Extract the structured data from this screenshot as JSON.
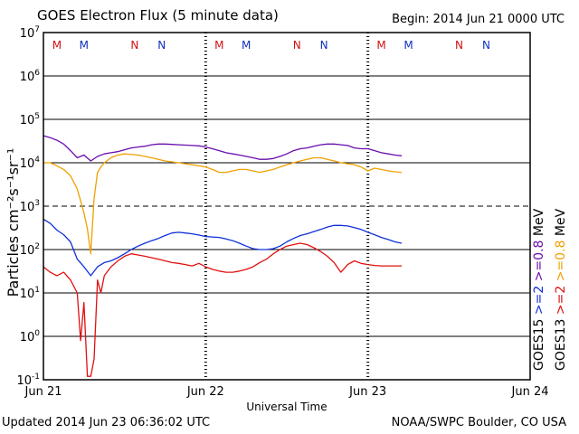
{
  "header": {
    "title": "GOES Electron Flux (5 minute data)",
    "begin": "Begin: 2014 Jun 21 0000 UTC"
  },
  "footer": {
    "updated": "Updated 2014 Jun 23 06:36:02 UTC",
    "credit": "NOAA/SWPC Boulder, CO USA"
  },
  "colors": {
    "goes15_08": "#6a0dad",
    "goes13_08": "#f0a000",
    "goes15_2": "#1030d8",
    "goes13_2": "#e01010",
    "marker_M": "#d01010",
    "marker_N": "#1030c0"
  },
  "chart_data": {
    "type": "line",
    "title": "GOES Electron Flux (5 minute data)",
    "xlabel": "Universal Time",
    "ylabel": "Particles cm⁻²s⁻¹sr⁻¹",
    "yscale": "log",
    "ylim": [
      0.1,
      10000000
    ],
    "xlim": [
      0,
      72
    ],
    "x_unit": "hours since 2014 Jun 21 0000 UTC",
    "x_ticks": [
      {
        "x": 0,
        "label": "Jun 21"
      },
      {
        "x": 24,
        "label": "Jun 22"
      },
      {
        "x": 48,
        "label": "Jun 23"
      },
      {
        "x": 72,
        "label": "Jun 24"
      }
    ],
    "y_ticks": [
      {
        "exp": 7
      },
      {
        "exp": 6
      },
      {
        "exp": 5
      },
      {
        "exp": 4
      },
      {
        "exp": 3
      },
      {
        "exp": 2
      },
      {
        "exp": 1
      },
      {
        "exp": 0
      },
      {
        "exp": -1
      }
    ],
    "threshold_dashed": 1000,
    "day_boundaries_dotted": [
      24,
      48
    ],
    "magnetopause_markers": [
      {
        "x": 2,
        "label": "M",
        "color": "marker_M"
      },
      {
        "x": 6,
        "label": "M",
        "color": "marker_N"
      },
      {
        "x": 13.5,
        "label": "N",
        "color": "marker_M"
      },
      {
        "x": 17.5,
        "label": "N",
        "color": "marker_N"
      },
      {
        "x": 26,
        "label": "M",
        "color": "marker_M"
      },
      {
        "x": 30,
        "label": "M",
        "color": "marker_N"
      },
      {
        "x": 37.5,
        "label": "N",
        "color": "marker_M"
      },
      {
        "x": 41.5,
        "label": "N",
        "color": "marker_N"
      },
      {
        "x": 50,
        "label": "M",
        "color": "marker_M"
      },
      {
        "x": 54,
        "label": "M",
        "color": "marker_N"
      },
      {
        "x": 61.5,
        "label": "N",
        "color": "marker_M"
      },
      {
        "x": 65.5,
        "label": "N",
        "color": "marker_N"
      }
    ],
    "legend": [
      {
        "name": "GOES15",
        "color": "#000000"
      },
      {
        "name": ">=2",
        "color": "goes15_2"
      },
      {
        "name": ">=0.8",
        "color": "goes15_08"
      },
      {
        "name": "MeV",
        "color": "#000000"
      },
      {
        "name": "GOES13",
        "color": "#000000"
      },
      {
        "name": ">=2",
        "color": "goes13_2"
      },
      {
        "name": ">=0.8",
        "color": "goes13_08"
      },
      {
        "name": "MeV",
        "color": "#000000"
      }
    ],
    "series": [
      {
        "name": "GOES15 >=0.8 MeV",
        "color": "goes15_08",
        "x": [
          0,
          1,
          2,
          3,
          4,
          5,
          6,
          7,
          8,
          9,
          10,
          11,
          12,
          13,
          14,
          15,
          16,
          17,
          18,
          19,
          20,
          21,
          22,
          23,
          24,
          25,
          26,
          27,
          28,
          29,
          30,
          31,
          32,
          33,
          34,
          35,
          36,
          37,
          38,
          39,
          40,
          41,
          42,
          43,
          44,
          45,
          46,
          47,
          48,
          49,
          50,
          51,
          52,
          53
        ],
        "y": [
          42000,
          38000,
          33000,
          27000,
          19000,
          13000,
          15000,
          11000,
          14000,
          16000,
          17000,
          18000,
          20000,
          22000,
          23000,
          24000,
          26000,
          27000,
          27000,
          26500,
          26000,
          25500,
          25000,
          24500,
          23000,
          21000,
          19000,
          17000,
          16000,
          15000,
          14000,
          13000,
          12000,
          12000,
          12500,
          14000,
          16000,
          19000,
          21000,
          22000,
          24000,
          26000,
          27000,
          27000,
          26000,
          25000,
          22000,
          21000,
          21000,
          19000,
          17000,
          16000,
          15000,
          14500
        ]
      },
      {
        "name": "GOES13 >=0.8 MeV",
        "color": "goes13_08",
        "x": [
          0,
          1,
          2,
          3,
          4,
          5,
          6,
          6.5,
          7,
          7.5,
          8,
          8.5,
          9,
          10,
          11,
          12,
          13,
          14,
          15,
          16,
          17,
          18,
          19,
          20,
          21,
          22,
          23,
          24,
          25,
          26,
          27,
          28,
          29,
          30,
          31,
          32,
          33,
          34,
          35,
          36,
          37,
          38,
          39,
          40,
          41,
          42,
          43,
          44,
          45,
          46,
          47,
          48,
          49,
          50,
          51,
          52,
          53
        ],
        "y": [
          10000,
          10000,
          8500,
          7000,
          5000,
          2500,
          700,
          300,
          80,
          1500,
          6000,
          8000,
          10000,
          13000,
          15000,
          16000,
          15500,
          15000,
          14000,
          13000,
          12000,
          11000,
          10500,
          10000,
          9500,
          9000,
          8500,
          8000,
          7000,
          6000,
          6000,
          6500,
          7000,
          7000,
          6500,
          6000,
          6500,
          7000,
          8000,
          9000,
          10000,
          11000,
          12000,
          13000,
          13000,
          12000,
          11000,
          10000,
          9500,
          9000,
          8000,
          6500,
          7500,
          7000,
          6500,
          6200,
          6000
        ]
      },
      {
        "name": "GOES15 >=2 MeV",
        "color": "goes15_2",
        "x": [
          0,
          1,
          2,
          3,
          4,
          5,
          6,
          7,
          8,
          9,
          10,
          11,
          12,
          13,
          14,
          15,
          16,
          17,
          18,
          19,
          20,
          21,
          22,
          23,
          24,
          25,
          26,
          27,
          28,
          29,
          30,
          31,
          32,
          33,
          34,
          35,
          36,
          37,
          38,
          39,
          40,
          41,
          42,
          43,
          44,
          45,
          46,
          47,
          48,
          49,
          50,
          51,
          52,
          53
        ],
        "y": [
          500,
          400,
          280,
          220,
          150,
          60,
          40,
          25,
          40,
          50,
          55,
          65,
          80,
          100,
          120,
          140,
          160,
          180,
          210,
          240,
          250,
          240,
          230,
          215,
          200,
          195,
          190,
          175,
          160,
          140,
          120,
          105,
          100,
          100,
          105,
          120,
          150,
          180,
          210,
          230,
          260,
          290,
          330,
          360,
          360,
          350,
          320,
          290,
          250,
          220,
          190,
          170,
          150,
          140
        ]
      },
      {
        "name": "GOES13 >=2 MeV",
        "color": "goes13_2",
        "x": [
          0,
          1,
          2,
          3,
          4,
          5,
          5.5,
          6,
          6.5,
          7,
          7.5,
          8,
          8.5,
          9,
          10,
          11,
          12,
          13,
          14,
          15,
          16,
          17,
          18,
          19,
          20,
          21,
          22,
          23,
          24,
          25,
          26,
          27,
          28,
          29,
          30,
          31,
          32,
          33,
          34,
          35,
          36,
          37,
          38,
          39,
          40,
          41,
          42,
          43,
          44,
          45,
          46,
          47,
          48,
          49,
          50,
          51,
          52,
          53
        ],
        "y": [
          40,
          30,
          25,
          30,
          20,
          10,
          0.8,
          6,
          0.12,
          0.12,
          0.3,
          20,
          10,
          25,
          40,
          55,
          70,
          80,
          75,
          70,
          65,
          60,
          55,
          50,
          48,
          45,
          42,
          48,
          40,
          35,
          32,
          30,
          30,
          32,
          35,
          40,
          50,
          60,
          80,
          100,
          120,
          130,
          140,
          130,
          110,
          90,
          70,
          50,
          30,
          45,
          55,
          48,
          45,
          43,
          42,
          42,
          42,
          42
        ]
      }
    ]
  }
}
